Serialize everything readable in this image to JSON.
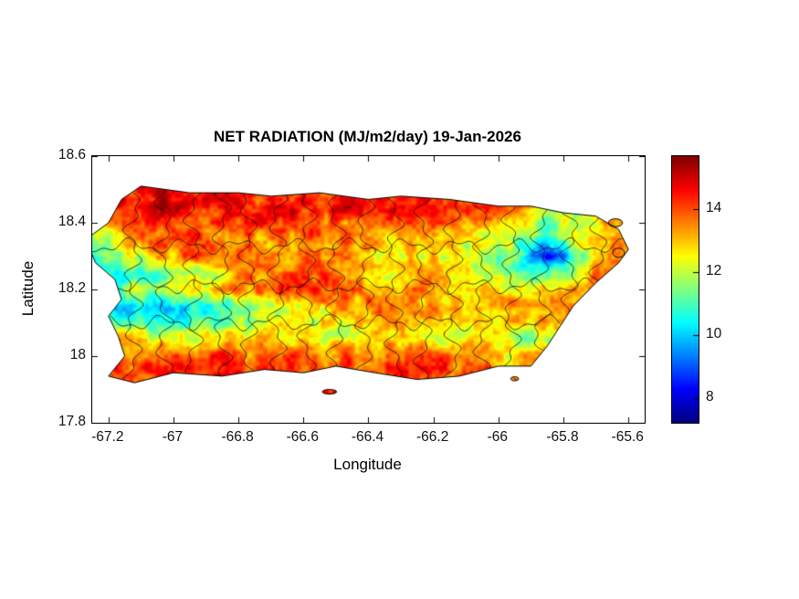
{
  "chart_data": {
    "type": "heatmap",
    "title": "NET RADIATION (MJ/m2/day) 19-Jan-2026",
    "xlabel": "Longitude",
    "ylabel": "Latitude",
    "xlim": [
      -67.25,
      -65.55
    ],
    "ylim": [
      17.8,
      18.6
    ],
    "xticks": [
      -67.2,
      -67,
      -66.8,
      -66.6,
      -66.4,
      -66.2,
      -66,
      -65.8,
      -65.6
    ],
    "xtick_labels": [
      "-67.2",
      "-67",
      "-66.8",
      "-66.6",
      "-66.4",
      "-66.2",
      "-66",
      "-65.8",
      "-65.6"
    ],
    "yticks": [
      17.8,
      18,
      18.2,
      18.4,
      18.6
    ],
    "ytick_labels": [
      "17.8",
      "18",
      "18.2",
      "18.4",
      "18.6"
    ],
    "colorbar": {
      "colormap": "jet",
      "vmin": 7.2,
      "vmax": 15.7,
      "ticks": [
        8,
        10,
        12,
        14
      ],
      "tick_labels": [
        "8",
        "10",
        "12",
        "14"
      ]
    },
    "layout": {
      "background": "#ffffff",
      "axis_color": "#000000",
      "boundary_color": "rgba(0,0,0,0.9)",
      "grid": false,
      "legend": "colorbar-right"
    },
    "grid": {
      "lon": [
        -67.25,
        -67.15,
        -67.05,
        -66.95,
        -66.85,
        -66.75,
        -66.65,
        -66.55,
        -66.45,
        -66.35,
        -66.25,
        -66.15,
        -66.05,
        -65.95,
        -65.85,
        -65.75,
        -65.65
      ],
      "lat": [
        18.5,
        18.45,
        18.4,
        18.35,
        18.3,
        18.25,
        18.2,
        18.15,
        18.1,
        18.05,
        18.0,
        17.95
      ],
      "values": [
        [
          13.5,
          14.2,
          14.6,
          14.4,
          14.2,
          14.6,
          14.2,
          14.5,
          14.1,
          14.6,
          14.2,
          14.1,
          14.5,
          14.0,
          13.6,
          13.2,
          13.2
        ],
        [
          13.8,
          14.6,
          15.0,
          14.6,
          14.4,
          14.1,
          14.6,
          14.2,
          14.6,
          14.1,
          14.6,
          14.2,
          14.1,
          13.6,
          12.8,
          12.4,
          12.8
        ],
        [
          12.4,
          14.0,
          14.5,
          14.2,
          14.0,
          14.5,
          14.1,
          14.0,
          13.6,
          14.0,
          14.4,
          13.6,
          13.1,
          12.6,
          11.6,
          12.1,
          13.1
        ],
        [
          11.6,
          12.8,
          14.0,
          14.0,
          13.6,
          13.2,
          13.6,
          14.0,
          13.6,
          13.1,
          12.6,
          13.0,
          12.4,
          12.0,
          10.2,
          12.0,
          13.4
        ],
        [
          11.0,
          12.0,
          13.0,
          13.6,
          14.0,
          13.6,
          13.1,
          13.6,
          13.1,
          12.6,
          12.6,
          12.5,
          12.0,
          11.0,
          8.2,
          11.5,
          13.6
        ],
        [
          10.0,
          10.5,
          11.0,
          11.6,
          12.6,
          13.5,
          14.0,
          13.9,
          12.6,
          12.6,
          13.4,
          13.0,
          12.1,
          11.6,
          10.6,
          12.6,
          14.0
        ],
        [
          11.2,
          11.6,
          12.1,
          12.6,
          13.1,
          13.6,
          14.1,
          14.4,
          13.6,
          13.6,
          13.4,
          12.6,
          13.1,
          12.6,
          12.6,
          13.6,
          14.1
        ],
        [
          11.0,
          10.1,
          10.2,
          10.6,
          11.1,
          11.6,
          12.2,
          12.8,
          13.2,
          13.8,
          13.5,
          13.1,
          13.4,
          13.1,
          13.5,
          14.0,
          14.1
        ],
        [
          12.1,
          11.1,
          10.6,
          11.1,
          11.6,
          12.1,
          12.1,
          12.6,
          12.6,
          13.1,
          13.1,
          12.6,
          12.4,
          12.6,
          13.1,
          14.0,
          14.2
        ],
        [
          13.1,
          13.5,
          12.6,
          12.1,
          12.6,
          13.1,
          12.6,
          12.1,
          12.6,
          13.1,
          12.6,
          12.1,
          12.6,
          12.0,
          11.6,
          13.6,
          14.1
        ],
        [
          13.6,
          14.1,
          14.1,
          14.5,
          14.1,
          13.6,
          14.1,
          13.6,
          14.1,
          13.6,
          14.1,
          13.6,
          13.6,
          12.6,
          13.1,
          14.1,
          14.2
        ],
        [
          13.2,
          14.1,
          14.6,
          14.1,
          14.5,
          14.1,
          14.1,
          14.5,
          14.1,
          14.1,
          14.5,
          14.1,
          13.6,
          13.6,
          14.1,
          14.1,
          14.2
        ]
      ]
    },
    "coastline": [
      [
        -67.16,
        18.47
      ],
      [
        -67.1,
        18.51
      ],
      [
        -66.95,
        18.49
      ],
      [
        -66.8,
        18.49
      ],
      [
        -66.7,
        18.48
      ],
      [
        -66.55,
        18.49
      ],
      [
        -66.4,
        18.47
      ],
      [
        -66.3,
        18.48
      ],
      [
        -66.15,
        18.47
      ],
      [
        -66.0,
        18.45
      ],
      [
        -65.9,
        18.45
      ],
      [
        -65.8,
        18.43
      ],
      [
        -65.7,
        18.42
      ],
      [
        -65.63,
        18.38
      ],
      [
        -65.6,
        18.32
      ],
      [
        -65.63,
        18.28
      ],
      [
        -65.7,
        18.22
      ],
      [
        -65.77,
        18.15
      ],
      [
        -65.81,
        18.09
      ],
      [
        -65.85,
        18.03
      ],
      [
        -65.9,
        17.97
      ],
      [
        -66.0,
        17.97
      ],
      [
        -66.12,
        17.94
      ],
      [
        -66.25,
        17.93
      ],
      [
        -66.38,
        17.95
      ],
      [
        -66.5,
        17.97
      ],
      [
        -66.6,
        17.95
      ],
      [
        -66.72,
        17.96
      ],
      [
        -66.85,
        17.94
      ],
      [
        -67.0,
        17.95
      ],
      [
        -67.12,
        17.92
      ],
      [
        -67.2,
        17.94
      ],
      [
        -67.15,
        18.0
      ],
      [
        -67.17,
        18.06
      ],
      [
        -67.2,
        18.12
      ],
      [
        -67.16,
        18.17
      ],
      [
        -67.18,
        18.23
      ],
      [
        -67.24,
        18.28
      ],
      [
        -67.27,
        18.35
      ],
      [
        -67.2,
        18.4
      ]
    ],
    "islets": [
      [
        -65.64,
        18.4,
        0.022,
        0.012
      ],
      [
        -65.63,
        18.31,
        0.018,
        0.014
      ],
      [
        -66.52,
        17.893,
        0.022,
        0.007
      ],
      [
        -65.95,
        17.932,
        0.012,
        0.006
      ]
    ],
    "boundaries": {
      "vertical_lon": [
        -67.125,
        -67.03,
        -66.94,
        -66.85,
        -66.77,
        -66.68,
        -66.59,
        -66.5,
        -66.41,
        -66.32,
        -66.23,
        -66.14,
        -66.05,
        -65.96,
        -65.87,
        -65.78,
        -65.69
      ],
      "horizontal_lat": [
        18.1,
        18.21,
        18.33
      ]
    }
  }
}
